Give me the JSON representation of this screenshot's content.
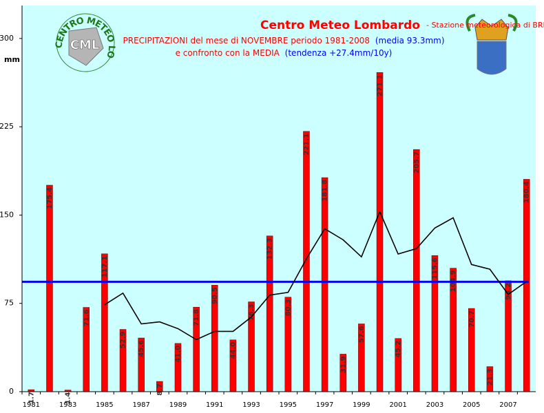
{
  "chart_data": {
    "type": "bar",
    "title": "Centro Meteo Lombardo",
    "title_suffix": "- Stazione meteorologica di BRESCIA-Ronchi",
    "subtitle_1": "PRECIPITAZIONI del mese di NOVEMBRE periodo 1981-2008",
    "subtitle_1_note": "(media 93.3mm)",
    "subtitle_2": "e confronto con la MEDIA",
    "subtitle_2_note": "(tendenza +27.4mm/10y)",
    "y_label": "mm",
    "logo_text": "CML",
    "logo_ring": "CENTRO METEO LOMBARDO",
    "categories": [
      "1981",
      null,
      "1983",
      null,
      "1985",
      null,
      "1987",
      null,
      "1989",
      null,
      "1991",
      null,
      "1993",
      null,
      "1995",
      null,
      "1997",
      null,
      "1999",
      null,
      "2001",
      null,
      "2003",
      null,
      "2005",
      null,
      "2007",
      null
    ],
    "values": [
      1.7,
      175.4,
      1.4,
      71.6,
      117.1,
      52.9,
      45.6,
      8.7,
      41.0,
      71.8,
      90.5,
      44.0,
      76.3,
      132.3,
      80.3,
      221.1,
      181.8,
      31.9,
      57.6,
      271.1,
      45.2,
      205.7,
      115.6,
      104.9,
      70.7,
      21.3,
      94.2,
      180.4
    ],
    "value_labels": [
      "1.7",
      "175.4",
      "1.4",
      "71.6",
      "117.1",
      "52.9",
      "45.6",
      "8.7",
      "41.0",
      "71.8",
      "90.5",
      "44.0",
      "76.3",
      "132.3",
      "80.3",
      "221.1",
      "181.8",
      "31.9",
      "57.6",
      "271.1",
      "45.2",
      "205.7",
      "115.6",
      "104.9",
      "70.7",
      "21.3",
      "94.2",
      "180.4"
    ],
    "color": "#ff0000",
    "moving_average": {
      "color": "#000000",
      "values": [
        null,
        null,
        null,
        null,
        73.8,
        83.7,
        57.6,
        59.3,
        53.5,
        44.2,
        51.2,
        51.2,
        63.4,
        82.0,
        84.3,
        112.8,
        138.4,
        129.0,
        114.5,
        152.9,
        116.9,
        121.5,
        139.0,
        147.7,
        108.0,
        104.0,
        82.6,
        93.6
      ]
    },
    "mean": {
      "value": 93.3,
      "color": "#0000ff"
    },
    "ylim": [
      0,
      328
    ],
    "yticks": [
      0,
      75,
      150,
      225,
      300
    ]
  }
}
